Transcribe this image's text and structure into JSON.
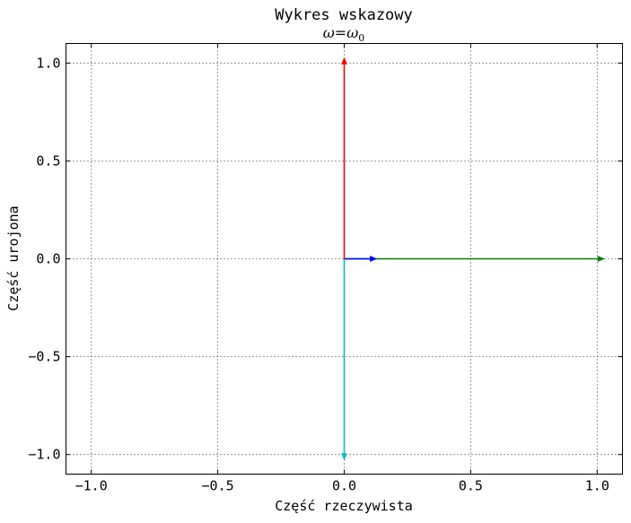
{
  "chart_data": {
    "type": "phasor",
    "title": "Wykres wskazowy",
    "subtitle": {
      "omega_symbol": "ω",
      "equals": "=",
      "rhs_symbol": "ω",
      "rhs_subscript": "0"
    },
    "xlabel": "Część rzeczywista",
    "ylabel": "Część urojona",
    "xlim": [
      -1.1,
      1.1
    ],
    "ylim": [
      -1.1,
      1.1
    ],
    "grid": true,
    "grid_style": "dotted",
    "x_ticks": [
      -1.0,
      -0.5,
      0.0,
      0.5,
      1.0
    ],
    "x_tick_labels": [
      "−1.0",
      "−0.5",
      "0.0",
      "0.5",
      "1.0"
    ],
    "y_ticks": [
      1.0,
      0.5,
      0.0,
      -0.5,
      -1.0
    ],
    "y_tick_labels": [
      "1.0",
      "0.5",
      "0.0",
      "−0.5",
      "−1.0"
    ],
    "series": [
      {
        "color": "#008000",
        "x": 1.03,
        "y": 0.0
      },
      {
        "color": "#0000ff",
        "x": 0.13,
        "y": 0.0
      },
      {
        "color": "#ff0000",
        "x": 0.0,
        "y": 1.03
      },
      {
        "color": "#00bfbf",
        "x": 0.0,
        "y": -1.03
      }
    ]
  }
}
